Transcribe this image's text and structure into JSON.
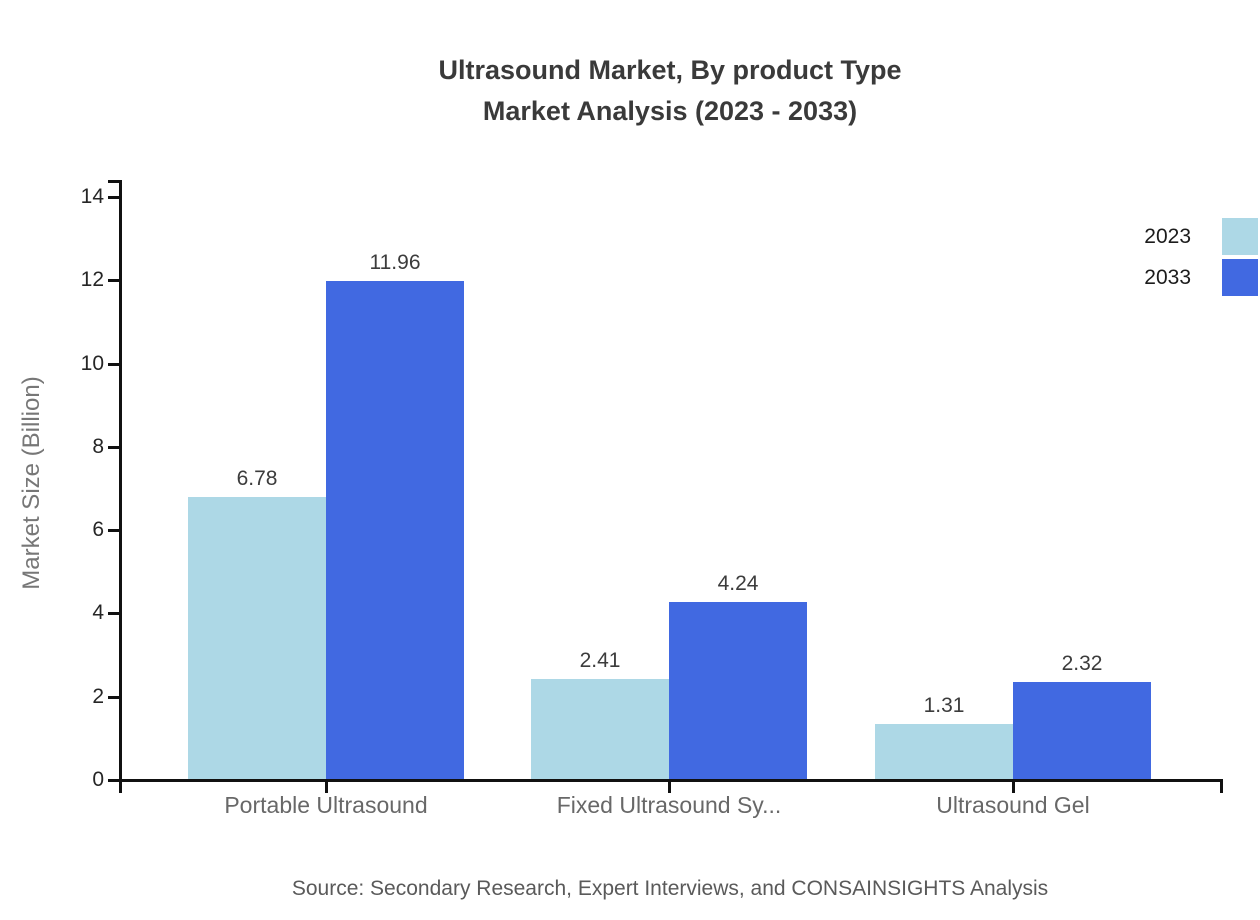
{
  "title": {
    "line1": "Ultrasound Market, By product Type",
    "line2": "Market Analysis (2023 - 2033)"
  },
  "y_axis": {
    "label": "Market Size (Billion)"
  },
  "footer": {
    "source": "Source: Secondary Research, Expert Interviews, and CONSAINSIGHTS Analysis"
  },
  "colors": {
    "series_2023": "#ADD8E6",
    "series_2033": "#4169E1",
    "axis": "#111111",
    "title_text": "#3A3A3A",
    "category_text": "#686868",
    "source_text": "#5A5A5A"
  },
  "chart_data": {
    "type": "bar",
    "title": "Ultrasound Market, By product Type Market Analysis (2023 - 2033)",
    "xlabel": "",
    "ylabel": "Market Size (Billion)",
    "categories": [
      "Portable Ultrasound",
      "Fixed Ultrasound Sy...",
      "Ultrasound Gel"
    ],
    "series": [
      {
        "name": "2023",
        "color": "#ADD8E6",
        "values": [
          6.78,
          2.41,
          1.31
        ]
      },
      {
        "name": "2033",
        "color": "#4169E1",
        "values": [
          11.96,
          4.24,
          2.32
        ]
      }
    ],
    "value_labels": [
      [
        "6.78",
        "2.41",
        "1.31"
      ],
      [
        "11.96",
        "4.24",
        "2.32"
      ]
    ],
    "ylim": [
      0,
      14
    ],
    "yticks": [
      0,
      2,
      4,
      6,
      8,
      10,
      12,
      14
    ],
    "grid": false,
    "legend_position": "top-right"
  }
}
